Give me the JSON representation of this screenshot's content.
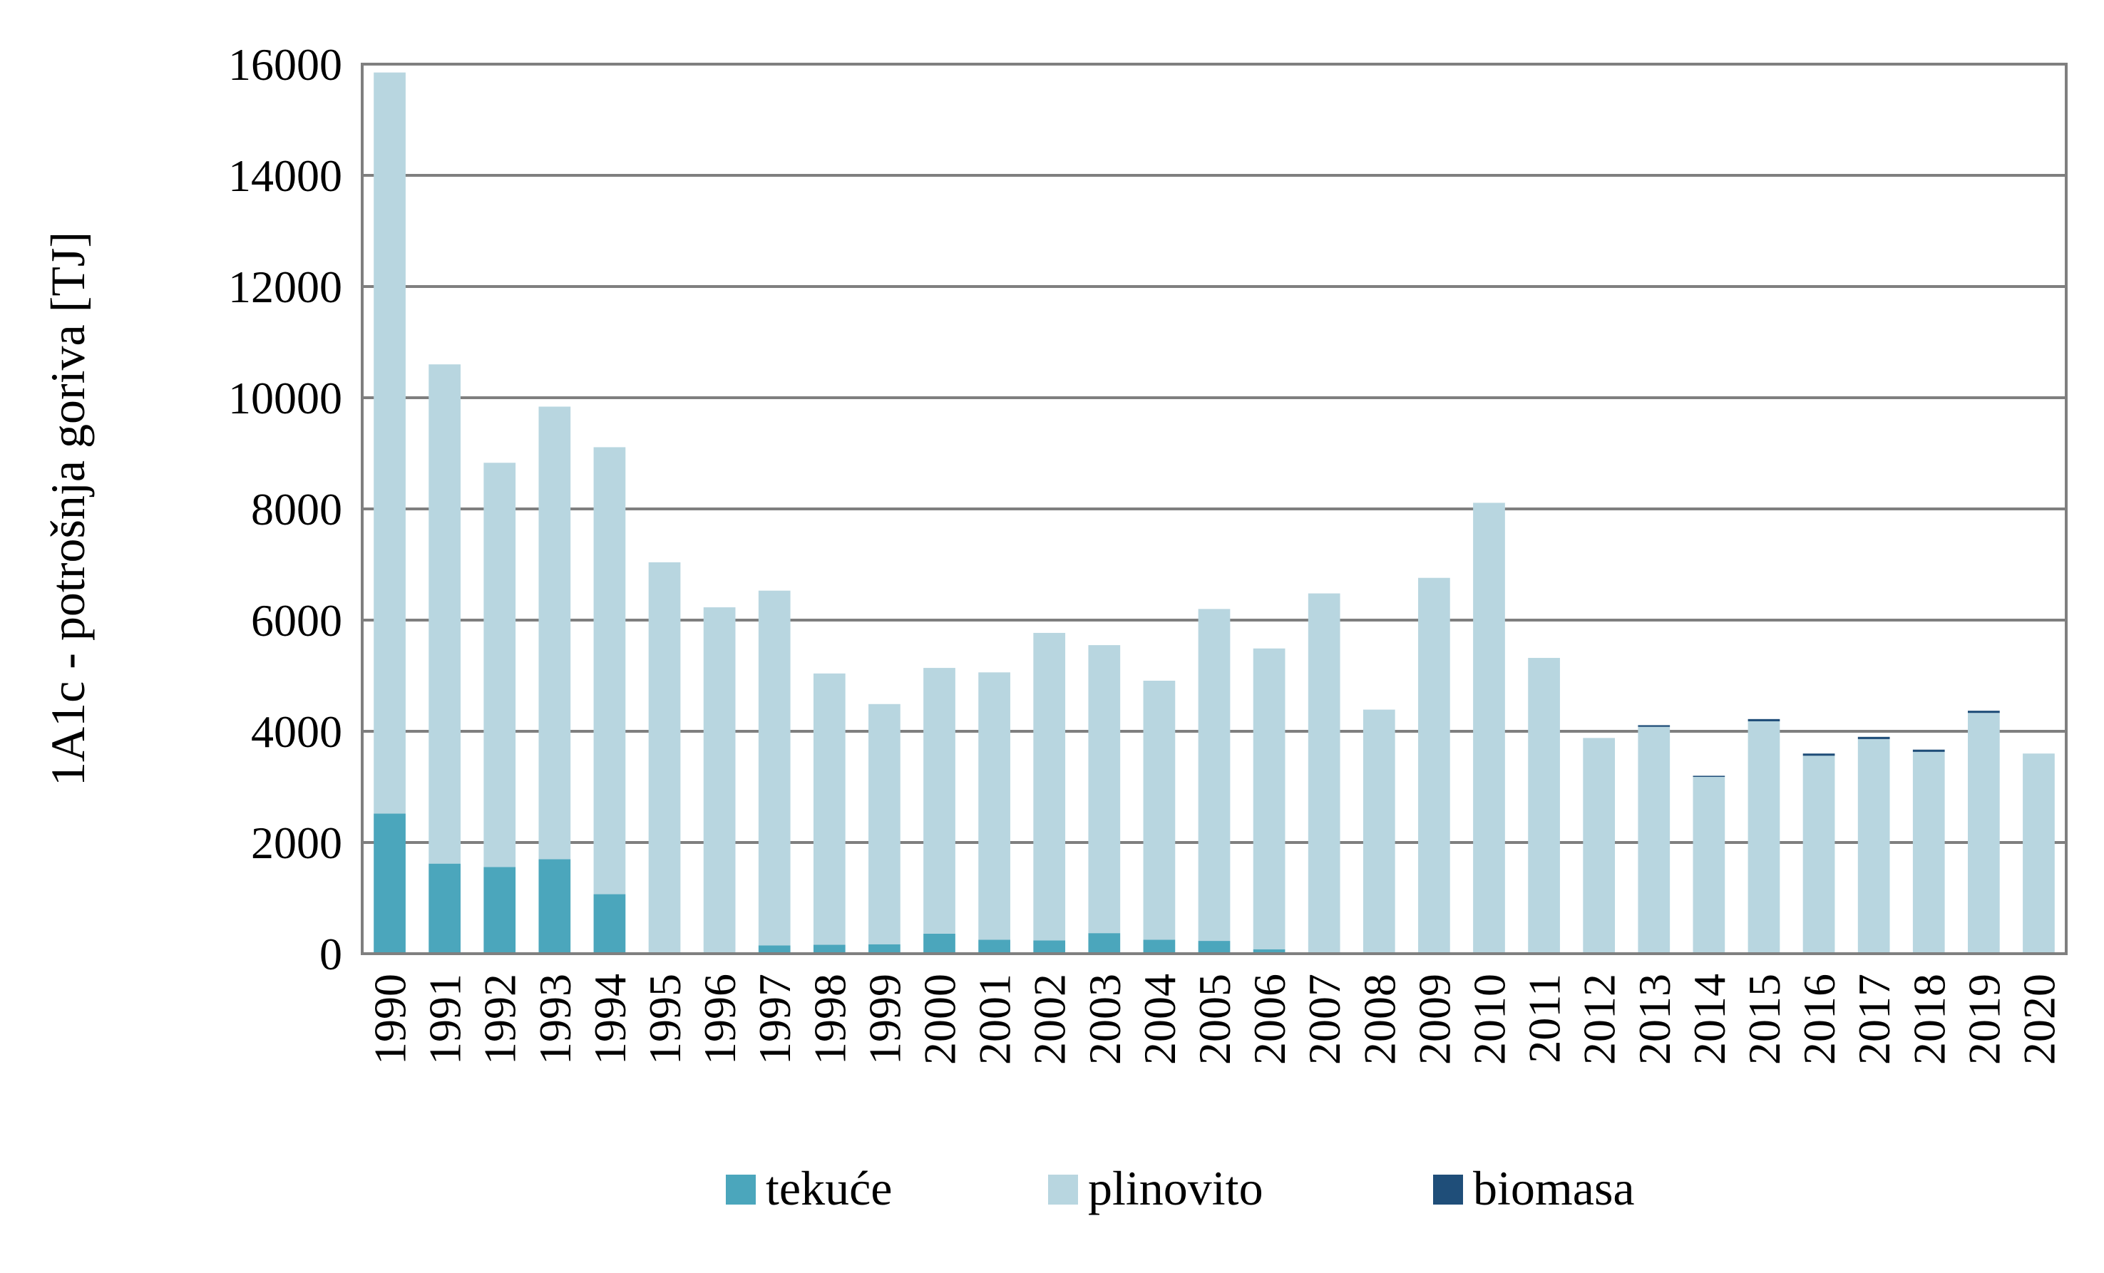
{
  "chart_data": {
    "type": "bar",
    "stacked": true,
    "title": "",
    "xlabel": "",
    "ylabel": "1A1c  - potrošnja goriva [TJ]",
    "ylim": [
      0,
      16000
    ],
    "yticks": [
      "0",
      "2000",
      "4000",
      "6000",
      "8000",
      "10000",
      "12000",
      "14000",
      "16000"
    ],
    "grid": true,
    "legend_position": "bottom",
    "categories": [
      "1990",
      "1991",
      "1992",
      "1993",
      "1994",
      "1995",
      "1996",
      "1997",
      "1998",
      "1999",
      "2000",
      "2001",
      "2002",
      "2003",
      "2004",
      "2005",
      "2006",
      "2007",
      "2008",
      "2009",
      "2010",
      "2011",
      "2012",
      "2013",
      "2014",
      "2015",
      "2016",
      "2017",
      "2018",
      "2019",
      "2020"
    ],
    "series": [
      {
        "name": "tekuće",
        "color": "#4BA6BC",
        "values": [
          2520,
          1620,
          1560,
          1700,
          1070,
          20,
          10,
          150,
          160,
          170,
          360,
          250,
          240,
          370,
          250,
          230,
          80,
          0,
          0,
          0,
          0,
          0,
          0,
          0,
          0,
          0,
          0,
          0,
          0,
          0,
          0
        ]
      },
      {
        "name": "plinovito",
        "color": "#B8D6E0",
        "values": [
          13330,
          8980,
          7270,
          8140,
          8040,
          7020,
          6220,
          6380,
          4880,
          4320,
          4780,
          4810,
          5530,
          5180,
          4660,
          5970,
          5410,
          6480,
          4390,
          6760,
          8110,
          5320,
          3880,
          4080,
          3180,
          4180,
          3560,
          3860,
          3630,
          4330,
          3600
        ]
      },
      {
        "name": "biomasa",
        "color": "#1F4E79",
        "values": [
          0,
          0,
          0,
          0,
          0,
          0,
          0,
          0,
          0,
          0,
          0,
          0,
          0,
          0,
          0,
          0,
          0,
          0,
          0,
          0,
          0,
          0,
          0,
          30,
          20,
          40,
          40,
          40,
          40,
          40,
          0
        ]
      }
    ]
  }
}
